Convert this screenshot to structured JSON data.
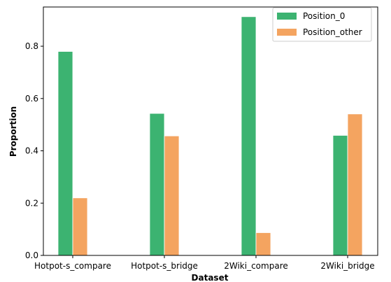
{
  "chart_data": {
    "type": "bar",
    "title": "",
    "xlabel": "Dataset",
    "ylabel": "Proportion",
    "categories": [
      "Hotpot-s_compare",
      "Hotpot-s_bridge",
      "2Wiki_compare",
      "2Wiki_bridge"
    ],
    "series": [
      {
        "name": "Position_0",
        "color": "#3cb371",
        "values": [
          0.78,
          0.543,
          0.913,
          0.459
        ]
      },
      {
        "name": "Position_other",
        "color": "#f4a460",
        "values": [
          0.22,
          0.457,
          0.087,
          0.541
        ]
      }
    ],
    "ylim": [
      0,
      0.95
    ],
    "yticks": [
      0.0,
      0.2,
      0.4,
      0.6,
      0.8
    ],
    "ytick_labels": [
      "0.0",
      "0.2",
      "0.4",
      "0.6",
      "0.8"
    ],
    "grid": false,
    "legend_position": "top-right"
  }
}
